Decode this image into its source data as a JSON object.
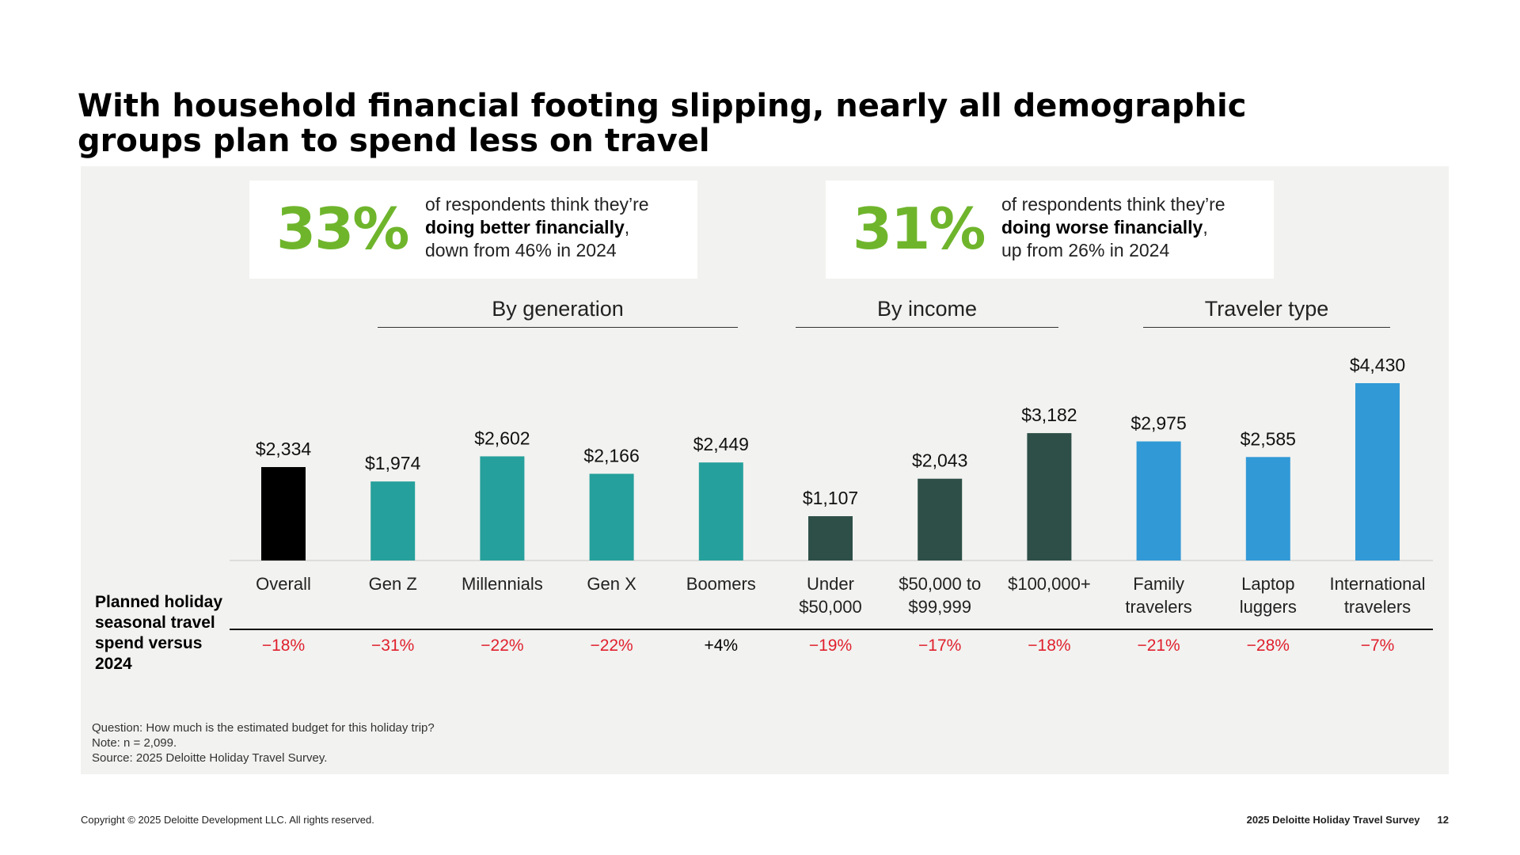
{
  "title": "With household financial footing slipping, nearly all demographic groups plan to spend less on travel",
  "stats": [
    {
      "value": "33%",
      "line1": "of respondents think they’re",
      "bold": "doing better financially",
      "suffix": ",",
      "line3": "down from 46% in 2024"
    },
    {
      "value": "31%",
      "line1": "of respondents think they’re",
      "bold": "doing worse financially",
      "suffix": ",",
      "line3": "up from 26% in 2024"
    }
  ],
  "groups": [
    "By generation",
    "By income",
    "Traveler type"
  ],
  "planned_label": "Planned holiday seasonal travel spend versus 2024",
  "colors": {
    "overall": "#000000",
    "generation": "#26a09c",
    "income": "#2d4f47",
    "traveler": "#3199d6",
    "negative": "#e0202d",
    "positive": "#000000",
    "stat_green": "#6fb52c"
  },
  "chart_data": {
    "type": "bar",
    "categories": [
      "Overall",
      "Gen Z",
      "Millennials",
      "Gen X",
      "Boomers",
      "Under $50,000",
      "$50,000 to $99,999",
      "$100,000+",
      "Family travelers",
      "Laptop luggers",
      "International travelers"
    ],
    "category_lines": [
      [
        "Overall"
      ],
      [
        "Gen Z"
      ],
      [
        "Millennials"
      ],
      [
        "Gen X"
      ],
      [
        "Boomers"
      ],
      [
        "Under",
        "$50,000"
      ],
      [
        "$50,000 to",
        "$99,999"
      ],
      [
        "$100,000+"
      ],
      [
        "Family",
        "travelers"
      ],
      [
        "Laptop",
        "luggers"
      ],
      [
        "International",
        "travelers"
      ]
    ],
    "values": [
      2334,
      1974,
      2602,
      2166,
      2449,
      1107,
      2043,
      3182,
      2975,
      2585,
      4430
    ],
    "value_labels": [
      "$2,334",
      "$1,974",
      "$2,602",
      "$2,166",
      "$2,449",
      "$1,107",
      "$2,043",
      "$3,182",
      "$2,975",
      "$2,585",
      "$4,430"
    ],
    "groups": [
      "overall",
      "generation",
      "generation",
      "generation",
      "generation",
      "income",
      "income",
      "income",
      "traveler",
      "traveler",
      "traveler"
    ],
    "change_vs_2024": [
      "−18%",
      "−31%",
      "−22%",
      "−22%",
      "+4%",
      "−19%",
      "−17%",
      "−18%",
      "−21%",
      "−28%",
      "−7%"
    ],
    "title": "",
    "xlabel": "",
    "ylabel": "",
    "ylim": [
      0,
      4430
    ],
    "grid": false,
    "legend": "none"
  },
  "footnotes": {
    "question": "Question: How much is the estimated budget for this holiday trip?",
    "note": "Note: n = 2,099.",
    "source": "Source: 2025 Deloitte Holiday Travel Survey."
  },
  "footer": {
    "copyright": "Copyright © 2025 Deloitte Development LLC. All rights reserved.",
    "survey": "2025 Deloitte Holiday Travel Survey",
    "page": "12"
  }
}
